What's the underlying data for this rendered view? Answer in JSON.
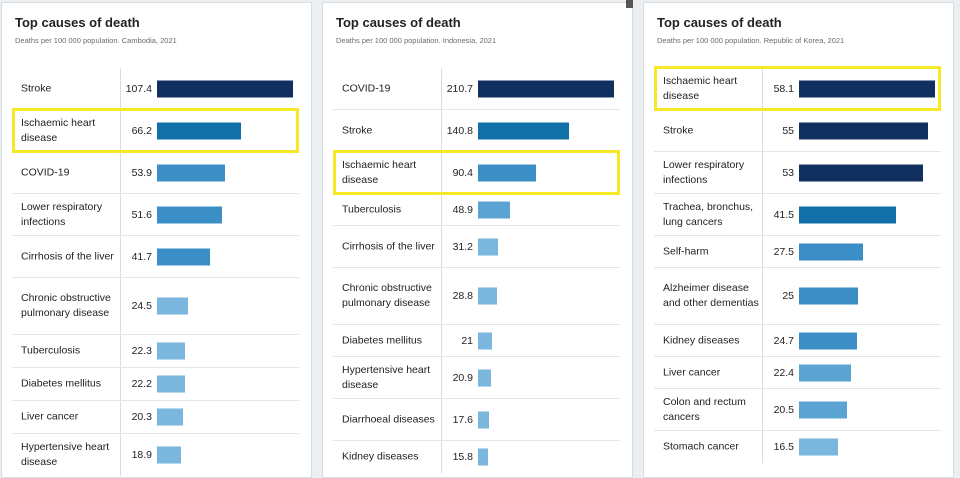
{
  "colors": {
    "highlight": "#f6e827",
    "bar_dark": "#11305f",
    "bar_mid": "#1170a8",
    "bar_medium": "#3b8fc6",
    "bar_light": "#5aa3d2",
    "bar_lightest": "#7ab6dd"
  },
  "panels": [
    {
      "title": "Top causes of death",
      "subtitle": "Deaths per 100 000 population. Cambodia, 2021"
    },
    {
      "title": "Top causes of death",
      "subtitle": "Deaths per 100 000 population. Indonesia, 2021"
    },
    {
      "title": "Top causes of death",
      "subtitle": "Deaths per 100 000 population. Republic of Korea, 2021"
    }
  ],
  "chart_data": [
    {
      "type": "bar",
      "orientation": "horizontal",
      "title": "Top causes of death",
      "subtitle": "Deaths per 100 000 population. Cambodia, 2021",
      "highlighted": "Ischaemic heart disease",
      "categories": [
        "Stroke",
        "Ischaemic heart disease",
        "COVID-19",
        "Lower respiratory infections",
        "Cirrhosis of the liver",
        "Chronic obstructive pulmonary disease",
        "Tuberculosis",
        "Diabetes mellitus",
        "Liver cancer",
        "Hypertensive heart disease"
      ],
      "values": [
        107.4,
        66.2,
        53.9,
        51.6,
        41.7,
        24.5,
        22.3,
        22.2,
        20.3,
        18.9
      ],
      "value_labels": [
        "107.4",
        "66.2",
        "53.9",
        "51.6",
        "41.7",
        "24.5",
        "22.3",
        "22.2",
        "20.3",
        "18.9"
      ],
      "bar_colors": [
        "#11305f",
        "#1170a8",
        "#3b8fc6",
        "#3b8fc6",
        "#3b8fc6",
        "#7ab6dd",
        "#7ab6dd",
        "#7ab6dd",
        "#7ab6dd",
        "#7ab6dd"
      ],
      "xmax": 107.4
    },
    {
      "type": "bar",
      "orientation": "horizontal",
      "title": "Top causes of death",
      "subtitle": "Deaths per 100 000 population. Indonesia, 2021",
      "highlighted": "Ischaemic heart disease",
      "categories": [
        "COVID-19",
        "Stroke",
        "Ischaemic heart disease",
        "Tuberculosis",
        "Cirrhosis of the liver",
        "Chronic obstructive pulmonary disease",
        "Diabetes mellitus",
        "Hypertensive heart disease",
        "Diarrhoeal diseases",
        "Kidney diseases"
      ],
      "values": [
        210.7,
        140.8,
        90.4,
        48.9,
        31.2,
        28.8,
        21,
        20.9,
        17.6,
        15.8
      ],
      "value_labels": [
        "210.7",
        "140.8",
        "90.4",
        "48.9",
        "31.2",
        "28.8",
        "21",
        "20.9",
        "17.6",
        "15.8"
      ],
      "bar_colors": [
        "#11305f",
        "#1170a8",
        "#3b8fc6",
        "#5aa3d2",
        "#7ab6dd",
        "#7ab6dd",
        "#7ab6dd",
        "#7ab6dd",
        "#7ab6dd",
        "#7ab6dd"
      ],
      "xmax": 210.7
    },
    {
      "type": "bar",
      "orientation": "horizontal",
      "title": "Top causes of death",
      "subtitle": "Deaths per 100 000 population. Republic of Korea, 2021",
      "highlighted": "Ischaemic heart disease",
      "categories": [
        "Ischaemic heart disease",
        "Stroke",
        "Lower respiratory infections",
        "Trachea, bronchus, lung cancers",
        "Self-harm",
        "Alzheimer disease and other dementias",
        "Kidney diseases",
        "Liver cancer",
        "Colon and rectum cancers",
        "Stomach cancer"
      ],
      "values": [
        58.1,
        55,
        53,
        41.5,
        27.5,
        25,
        24.7,
        22.4,
        20.5,
        16.5
      ],
      "value_labels": [
        "58.1",
        "55",
        "53",
        "41.5",
        "27.5",
        "25",
        "24.7",
        "22.4",
        "20.5",
        "16.5"
      ],
      "bar_colors": [
        "#11305f",
        "#11305f",
        "#11305f",
        "#1170a8",
        "#3b8fc6",
        "#3b8fc6",
        "#3b8fc6",
        "#5aa3d2",
        "#5aa3d2",
        "#7ab6dd"
      ],
      "xmax": 58.1
    }
  ]
}
